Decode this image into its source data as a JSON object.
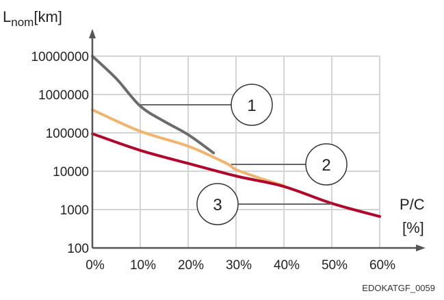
{
  "chart_data": {
    "type": "line",
    "ylabel": {
      "main": "L",
      "sub": "nom",
      "unit": "[km]"
    },
    "xlabel": {
      "main": "P/C",
      "unit": "[%]"
    },
    "yscale": "log",
    "ylim": [
      100,
      10000000
    ],
    "xlim": [
      0,
      60
    ],
    "grid": true,
    "x_tick_labels": [
      "0%",
      "10%",
      "20%",
      "30%",
      "40%",
      "50%",
      "60%"
    ],
    "x_ticks": [
      0,
      10,
      20,
      30,
      40,
      50,
      60
    ],
    "y_tick_labels": [
      "100",
      "1000",
      "10000",
      "100000",
      "1000000",
      "10000000"
    ],
    "y_ticks": [
      100,
      1000,
      10000,
      100000,
      1000000,
      10000000
    ],
    "series": [
      {
        "callout": "1",
        "color": "#6b6b6b",
        "x": [
          0,
          5,
          10,
          15,
          20,
          25.3
        ],
        "y": [
          10000000,
          2600000,
          500000,
          200000,
          90000,
          30000
        ],
        "callout_at": [
          10,
          500000
        ]
      },
      {
        "callout": "2",
        "color": "#f0b46e",
        "x": [
          0,
          10,
          20,
          28,
          30,
          35,
          40
        ],
        "y": [
          400000,
          110000,
          45000,
          16000,
          11000,
          6600,
          4200
        ],
        "callout_at": [
          29,
          13000
        ]
      },
      {
        "callout": "3",
        "color": "#b0062c",
        "x": [
          0,
          10,
          20,
          30,
          40,
          50,
          60
        ],
        "y": [
          95000,
          35000,
          16000,
          7500,
          4000,
          1450,
          660
        ],
        "callout_at": [
          50,
          1400
        ]
      }
    ]
  },
  "figure_code": "EDOKATGF_0059"
}
